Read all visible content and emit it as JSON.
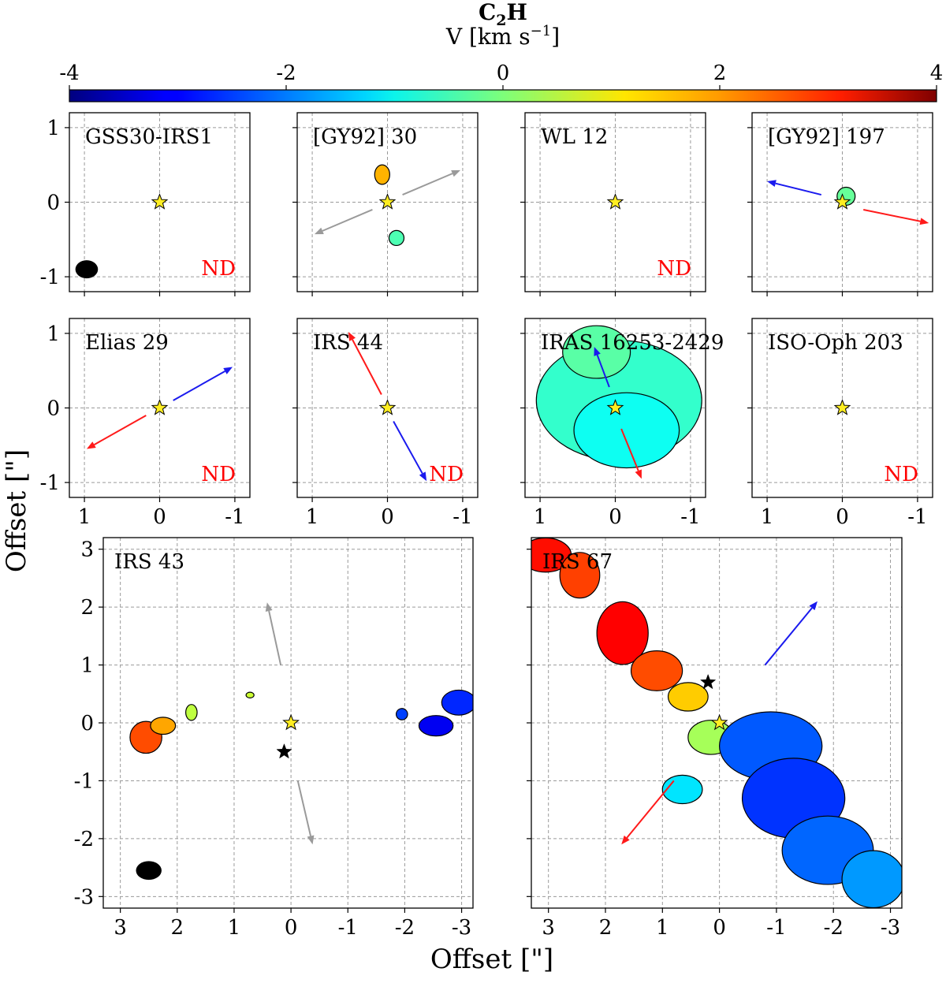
{
  "figure": {
    "colorbar": {
      "molecule": "C",
      "molecule_sub": "2",
      "molecule_end": "H",
      "label": "V [km s",
      "label_sup": "−1",
      "label_end": "]",
      "ticks": [
        "-4",
        "-2",
        "0",
        "2",
        "4"
      ],
      "range": [
        -4,
        4
      ],
      "colormap": "jet"
    },
    "xlabel": "Offset [\"]",
    "ylabel": "Offset [\"]",
    "nd_label": "ND"
  },
  "colors": {
    "redshift": "#ff1a1a",
    "blueshift": "#1a1aee",
    "outflow_unknown": "#9a9a9a",
    "star_fill": "#ffee22",
    "nd_text": "#ff0000",
    "grid": "#9a9a9a"
  },
  "chart_data": [
    {
      "type": "heatmap",
      "name": "GSS30-IRS1",
      "xlim": [
        1.2,
        -1.2
      ],
      "ylim": [
        -1.2,
        1.2
      ],
      "xticks": [
        "1",
        "0",
        "-1"
      ],
      "yticks": [
        "1",
        "0",
        "-1"
      ],
      "detected": false,
      "beam": {
        "x": 0.97,
        "y": -0.9,
        "bmaj": 0.3,
        "bmin": 0.24
      },
      "stars": [
        {
          "x": 0,
          "y": 0,
          "color": "yellow"
        }
      ],
      "outflows": [],
      "emission": []
    },
    {
      "type": "heatmap",
      "name": "[GY92] 30",
      "xlim": [
        1.2,
        -1.2
      ],
      "ylim": [
        -1.2,
        1.2
      ],
      "xticks": [
        "1",
        "0",
        "-1"
      ],
      "yticks": [
        "1",
        "0",
        "-1"
      ],
      "detected": true,
      "stars": [
        {
          "x": 0,
          "y": 0,
          "color": "yellow"
        }
      ],
      "outflows": [
        {
          "x0": -0.2,
          "y0": 0.1,
          "x1": -0.97,
          "y1": 0.43,
          "color": "gray"
        },
        {
          "x0": 0.2,
          "y0": -0.1,
          "x1": 0.97,
          "y1": -0.43,
          "color": "gray"
        }
      ],
      "emission": [
        {
          "x": 0.07,
          "y": 0.37,
          "rx": 0.1,
          "ry": 0.13,
          "velocity": 1.6
        },
        {
          "x": -0.12,
          "y": -0.48,
          "rx": 0.1,
          "ry": 0.1,
          "velocity": -0.4
        }
      ]
    },
    {
      "type": "heatmap",
      "name": "WL 12",
      "xlim": [
        1.2,
        -1.2
      ],
      "ylim": [
        -1.2,
        1.2
      ],
      "xticks": [
        "1",
        "0",
        "-1"
      ],
      "yticks": [
        "1",
        "0",
        "-1"
      ],
      "detected": false,
      "stars": [
        {
          "x": 0,
          "y": 0,
          "color": "yellow"
        }
      ],
      "outflows": [],
      "emission": []
    },
    {
      "type": "heatmap",
      "name": "[GY92] 197",
      "xlim": [
        1.2,
        -1.2
      ],
      "ylim": [
        -1.2,
        1.2
      ],
      "xticks": [
        "1",
        "0",
        "-1"
      ],
      "yticks": [
        "1",
        "0",
        "-1"
      ],
      "detected": true,
      "stars": [
        {
          "x": 0,
          "y": 0,
          "color": "yellow"
        }
      ],
      "outflows": [
        {
          "x0": 0.28,
          "y0": 0.1,
          "x1": 1.0,
          "y1": 0.28,
          "color": "blue"
        },
        {
          "x0": -0.28,
          "y0": -0.1,
          "x1": -1.15,
          "y1": -0.28,
          "color": "red"
        }
      ],
      "emission": [
        {
          "x": -0.05,
          "y": 0.08,
          "rx": 0.12,
          "ry": 0.12,
          "velocity": -0.2
        }
      ]
    },
    {
      "type": "heatmap",
      "name": "Elias 29",
      "xlim": [
        1.2,
        -1.2
      ],
      "ylim": [
        -1.2,
        1.2
      ],
      "xticks": [
        "1",
        "0",
        "-1"
      ],
      "yticks": [
        "1",
        "0",
        "-1"
      ],
      "detected": false,
      "stars": [
        {
          "x": 0,
          "y": 0,
          "color": "yellow"
        }
      ],
      "outflows": [
        {
          "x0": -0.18,
          "y0": 0.1,
          "x1": -0.97,
          "y1": 0.55,
          "color": "blue"
        },
        {
          "x0": 0.18,
          "y0": -0.1,
          "x1": 0.97,
          "y1": -0.55,
          "color": "red"
        }
      ],
      "emission": []
    },
    {
      "type": "heatmap",
      "name": "IRS 44",
      "xlim": [
        1.2,
        -1.2
      ],
      "ylim": [
        -1.2,
        1.2
      ],
      "xticks": [
        "1",
        "0",
        "-1"
      ],
      "yticks": [
        "1",
        "0",
        "-1"
      ],
      "detected": false,
      "stars": [
        {
          "x": 0,
          "y": 0,
          "color": "yellow"
        }
      ],
      "outflows": [
        {
          "x0": 0.08,
          "y0": 0.18,
          "x1": 0.52,
          "y1": 1.02,
          "color": "red"
        },
        {
          "x0": -0.08,
          "y0": -0.18,
          "x1": -0.52,
          "y1": -0.98,
          "color": "blue"
        }
      ],
      "emission": []
    },
    {
      "type": "heatmap",
      "name": "IRAS 16253-2429",
      "xlim": [
        1.2,
        -1.2
      ],
      "ylim": [
        -1.2,
        1.2
      ],
      "xticks": [
        "1",
        "0",
        "-1"
      ],
      "yticks": [
        "1",
        "0",
        "-1"
      ],
      "detected": true,
      "stars": [
        {
          "x": 0,
          "y": 0,
          "color": "yellow"
        }
      ],
      "outflows": [
        {
          "x0": 0.08,
          "y0": 0.28,
          "x1": 0.28,
          "y1": 0.82,
          "color": "blue"
        },
        {
          "x0": -0.08,
          "y0": -0.28,
          "x1": -0.35,
          "y1": -0.95,
          "color": "red"
        }
      ],
      "emission": [
        {
          "x": -0.05,
          "y": 0.1,
          "rx": 1.1,
          "ry": 0.8,
          "velocity": -0.6
        },
        {
          "x": 0.25,
          "y": 0.75,
          "rx": 0.45,
          "ry": 0.35,
          "velocity": -0.3
        },
        {
          "x": -0.15,
          "y": -0.3,
          "rx": 0.7,
          "ry": 0.5,
          "velocity": -0.9
        }
      ]
    },
    {
      "type": "heatmap",
      "name": "ISO-Oph 203",
      "xlim": [
        1.2,
        -1.2
      ],
      "ylim": [
        -1.2,
        1.2
      ],
      "xticks": [
        "1",
        "0",
        "-1"
      ],
      "yticks": [
        "1",
        "0",
        "-1"
      ],
      "detected": false,
      "stars": [
        {
          "x": 0,
          "y": 0,
          "color": "yellow"
        }
      ],
      "outflows": [],
      "emission": []
    },
    {
      "type": "heatmap",
      "name": "IRS 43",
      "xlim": [
        3.3,
        -3.2
      ],
      "ylim": [
        -3.2,
        3.2
      ],
      "xticks": [
        "3",
        "2",
        "1",
        "0",
        "-1",
        "-2",
        "-3"
      ],
      "yticks": [
        "3",
        "2",
        "1",
        "0",
        "-1",
        "-2",
        "-3"
      ],
      "detected": true,
      "beam": {
        "x": 2.5,
        "y": -2.55,
        "bmaj": 0.45,
        "bmin": 0.33
      },
      "stars": [
        {
          "x": 0,
          "y": 0,
          "color": "yellow"
        },
        {
          "x": 0.12,
          "y": -0.5,
          "color": "black"
        }
      ],
      "outflows": [
        {
          "x0": 0.18,
          "y0": 1.0,
          "x1": 0.42,
          "y1": 2.08,
          "color": "gray"
        },
        {
          "x0": -0.12,
          "y0": -1.0,
          "x1": -0.38,
          "y1": -2.1,
          "color": "gray"
        }
      ],
      "emission": [
        {
          "x": 2.55,
          "y": -0.25,
          "rx": 0.28,
          "ry": 0.28,
          "velocity": 2.4
        },
        {
          "x": 2.25,
          "y": -0.05,
          "rx": 0.22,
          "ry": 0.15,
          "velocity": 1.7
        },
        {
          "x": 1.75,
          "y": 0.18,
          "rx": 0.1,
          "ry": 0.14,
          "velocity": 0.5
        },
        {
          "x": 0.72,
          "y": 0.48,
          "rx": 0.07,
          "ry": 0.05,
          "velocity": 0.6
        },
        {
          "x": -1.95,
          "y": 0.15,
          "rx": 0.1,
          "ry": 0.1,
          "velocity": -2.5
        },
        {
          "x": -2.55,
          "y": -0.05,
          "rx": 0.3,
          "ry": 0.18,
          "velocity": -3.1
        },
        {
          "x": -2.95,
          "y": 0.35,
          "rx": 0.3,
          "ry": 0.22,
          "velocity": -2.7
        }
      ]
    },
    {
      "type": "heatmap",
      "name": "IRS 67",
      "xlim": [
        3.3,
        -3.2
      ],
      "ylim": [
        -3.2,
        3.2
      ],
      "xticks": [
        "3",
        "2",
        "1",
        "0",
        "-1",
        "-2",
        "-3"
      ],
      "yticks": [
        "3",
        "2",
        "1",
        "0",
        "-1",
        "-2",
        "-3"
      ],
      "detected": true,
      "stars": [
        {
          "x": 0,
          "y": 0,
          "color": "yellow"
        },
        {
          "x": 0.2,
          "y": 0.7,
          "color": "black"
        }
      ],
      "outflows": [
        {
          "x0": -0.8,
          "y0": 1.0,
          "x1": -1.72,
          "y1": 2.1,
          "color": "blue"
        },
        {
          "x0": 0.8,
          "y0": -1.0,
          "x1": 1.72,
          "y1": -2.1,
          "color": "red"
        }
      ],
      "emission": [
        {
          "x": 3.05,
          "y": 2.9,
          "rx": 0.45,
          "ry": 0.3,
          "velocity": 2.9
        },
        {
          "x": 2.45,
          "y": 2.55,
          "rx": 0.35,
          "ry": 0.4,
          "velocity": 2.5
        },
        {
          "x": 1.7,
          "y": 1.55,
          "rx": 0.45,
          "ry": 0.55,
          "velocity": 3.0
        },
        {
          "x": 1.1,
          "y": 0.9,
          "rx": 0.45,
          "ry": 0.35,
          "velocity": 2.4
        },
        {
          "x": 0.55,
          "y": 0.45,
          "rx": 0.35,
          "ry": 0.25,
          "velocity": 1.4
        },
        {
          "x": 0.15,
          "y": -0.25,
          "rx": 0.4,
          "ry": 0.3,
          "velocity": 0.3
        },
        {
          "x": -0.9,
          "y": -0.4,
          "rx": 0.9,
          "ry": 0.6,
          "velocity": -2.3
        },
        {
          "x": -1.3,
          "y": -1.3,
          "rx": 0.9,
          "ry": 0.7,
          "velocity": -2.6
        },
        {
          "x": -1.9,
          "y": -2.2,
          "rx": 0.8,
          "ry": 0.6,
          "velocity": -2.2
        },
        {
          "x": -2.7,
          "y": -2.7,
          "rx": 0.55,
          "ry": 0.5,
          "velocity": -1.8
        },
        {
          "x": 0.65,
          "y": -1.15,
          "rx": 0.35,
          "ry": 0.25,
          "velocity": -1.2
        }
      ]
    }
  ]
}
